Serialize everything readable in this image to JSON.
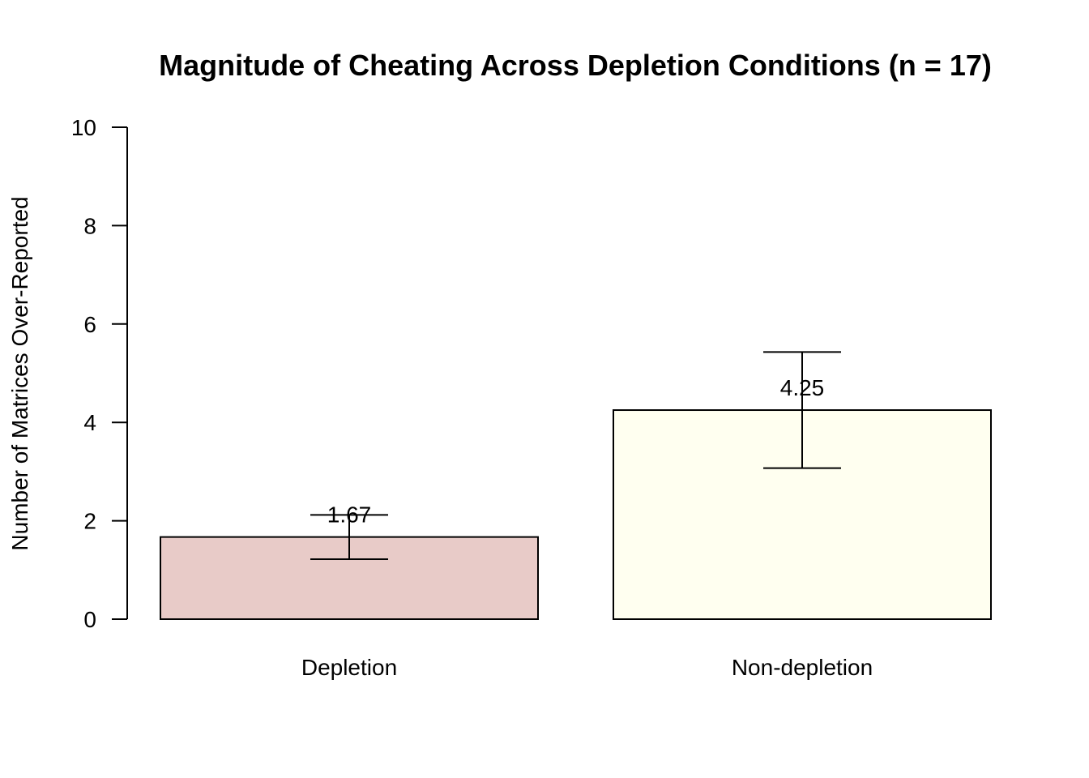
{
  "chart_data": {
    "type": "bar",
    "title": "Magnitude of Cheating Across Depletion Conditions (n = 17)",
    "xlabel": "",
    "ylabel": "Number of Matrices Over-Reported",
    "categories": [
      "Depletion",
      "Non-depletion"
    ],
    "values": [
      1.67,
      4.25
    ],
    "value_labels": [
      "1.67",
      "4.25"
    ],
    "error_bars": [
      {
        "low": 1.22,
        "high": 2.12
      },
      {
        "low": 3.07,
        "high": 5.43
      }
    ],
    "colors": [
      "#e8cbc8",
      "#fffff0"
    ],
    "ylim": [
      0,
      10
    ],
    "yticks": [
      0,
      2,
      4,
      6,
      8,
      10
    ],
    "ytick_labels": [
      "0",
      "2",
      "4",
      "6",
      "8",
      "10"
    ],
    "grid": false,
    "legend": "none"
  }
}
